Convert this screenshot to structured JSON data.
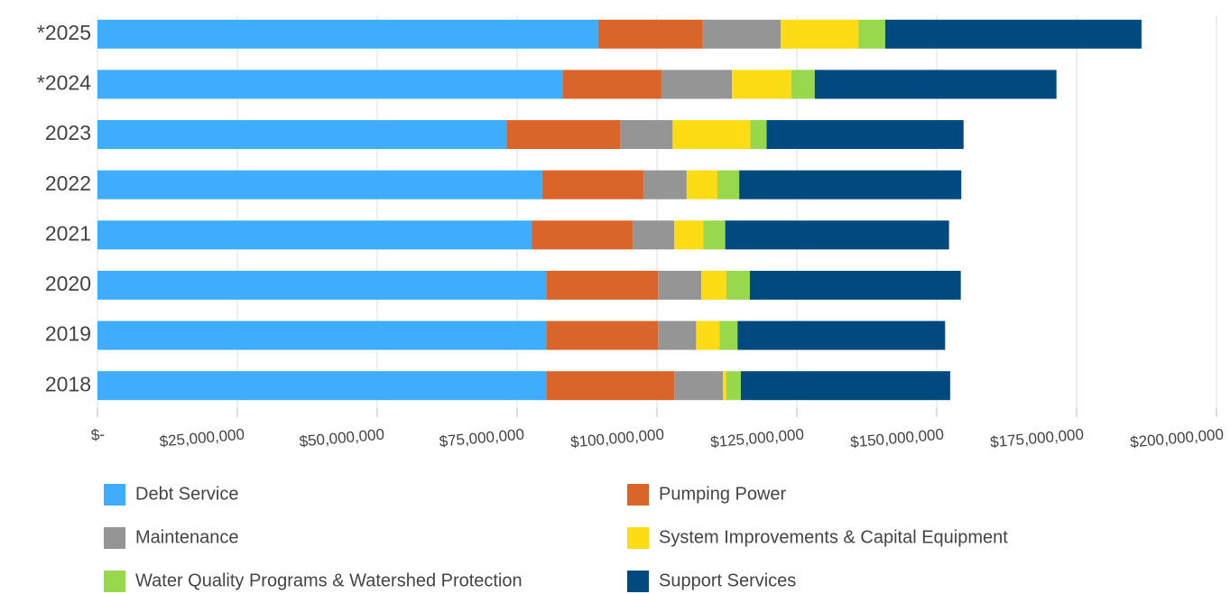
{
  "chart_data": {
    "type": "stacked_bar_horizontal",
    "categories": [
      "*2025",
      "*2024",
      "2023",
      "2022",
      "2021",
      "2020",
      "2019",
      "2018"
    ],
    "series": [
      {
        "name": "Debt Service",
        "color": "#3fadfc",
        "values": [
          89500000,
          83100000,
          73100000,
          79500000,
          77600000,
          80200000,
          80200000,
          80200000
        ]
      },
      {
        "name": "Pumping Power",
        "color": "#d9652a",
        "values": [
          18700000,
          17700000,
          20300000,
          18100000,
          18100000,
          20000000,
          20000000,
          22900000
        ]
      },
      {
        "name": "Maintenance",
        "color": "#959595",
        "values": [
          13900000,
          12600000,
          9400000,
          7700000,
          7400000,
          7700000,
          6800000,
          8700000
        ]
      },
      {
        "name": "System Improvements & Capital Equipment",
        "color": "#fddc15",
        "values": [
          13900000,
          10600000,
          13900000,
          5500000,
          5200000,
          4500000,
          4200000,
          600000
        ]
      },
      {
        "name": "Water Quality Programs & Watershed Protection",
        "color": "#97d84c",
        "values": [
          4800000,
          4200000,
          2900000,
          3900000,
          3900000,
          4200000,
          3200000,
          2600000
        ]
      },
      {
        "name": "Support Services",
        "color": "#004a7f",
        "values": [
          45800000,
          43200000,
          35200000,
          39700000,
          40000000,
          37700000,
          37100000,
          37400000
        ]
      }
    ],
    "xlim": [
      0,
      200000000
    ],
    "xticks": [
      {
        "value": 0,
        "label": "$-"
      },
      {
        "value": 25000000,
        "label": "$25,000,000"
      },
      {
        "value": 50000000,
        "label": "$50,000,000"
      },
      {
        "value": 75000000,
        "label": "$75,000,000"
      },
      {
        "value": 100000000,
        "label": "$100,000,000"
      },
      {
        "value": 125000000,
        "label": "$125,000,000"
      },
      {
        "value": 150000000,
        "label": "$150,000,000"
      },
      {
        "value": 175000000,
        "label": "$175,000,000"
      },
      {
        "value": 200000000,
        "label": "$200,000,000"
      }
    ],
    "grid": true
  }
}
